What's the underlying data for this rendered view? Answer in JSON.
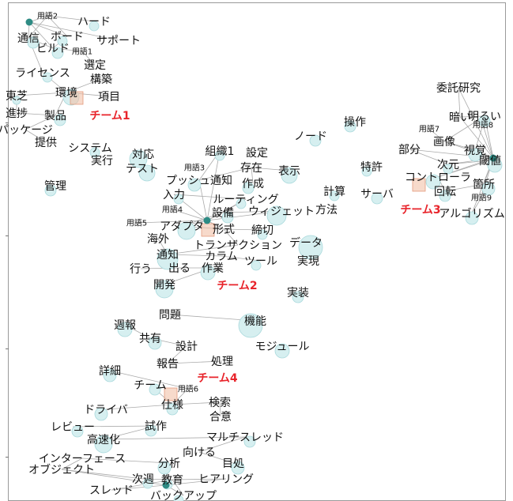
{
  "teams": [
    {
      "label": "チーム1"
    },
    {
      "label": "チーム2"
    },
    {
      "label": "チーム3"
    },
    {
      "label": "チーム4"
    }
  ],
  "words": [
    "用語2",
    "ハード",
    "通信",
    "ボード",
    "サポート",
    "ビルド",
    "用語1",
    "選定",
    "ライセンス",
    "構築",
    "東芝",
    "環境",
    "項目",
    "進捗",
    "製品",
    "パッケージ",
    "提供",
    "システム",
    "対応",
    "実行",
    "テスト",
    "管理",
    "組織1",
    "設定",
    "プッシュ通知",
    "用語3",
    "存在",
    "作成",
    "表示",
    "入力",
    "ルーティング",
    "用語4",
    "設備",
    "ウィジェット",
    "用語5",
    "アダプタ",
    "形式",
    "締切",
    "海外",
    "トランザクション",
    "通知",
    "カラム",
    "ツール",
    "行う",
    "出る",
    "作業",
    "開発",
    "ノード",
    "操作",
    "計算",
    "方法",
    "特許",
    "サーバ",
    "データ",
    "実現",
    "実装",
    "委託研究",
    "暗い",
    "明るい",
    "用語7",
    "画像",
    "視覚",
    "用語8",
    "部分",
    "次元",
    "閾値",
    "コントローラ",
    "回転",
    "箇所",
    "用語9",
    "アルゴリズム",
    "問題",
    "機能",
    "週報",
    "共有",
    "設計",
    "モジュール",
    "報告",
    "処理",
    "詳細",
    "チーム",
    "用語6",
    "仕様",
    "検索",
    "ドライバ",
    "合意",
    "レビュー",
    "試作",
    "高速化",
    "マルチスレッド",
    "向ける",
    "インターフェース",
    "目処",
    "分析",
    "オブジェクト",
    "次週",
    "教育",
    "ヒアリング",
    "スレッド",
    "バックアップ"
  ],
  "colors": {
    "team": "#e8242b",
    "bubble_fill": "#d6eff0",
    "bubble_stroke": "#a9d9dc",
    "edge": "#aaaaaa",
    "hub": "#2e8b84",
    "square": "#f2c1a8"
  }
}
